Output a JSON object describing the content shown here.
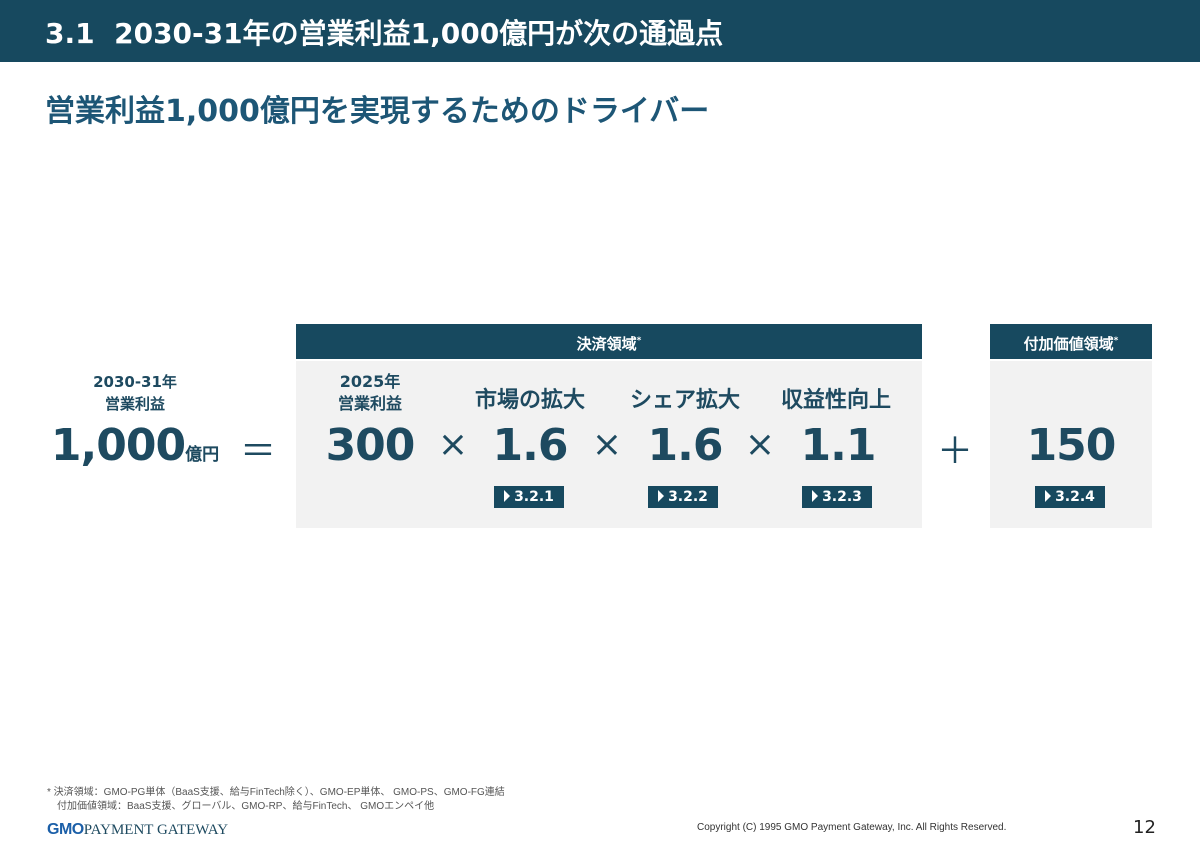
{
  "header": {
    "title": "3.1  2030-31年の営業利益1,000億円が次の通過点"
  },
  "subtitle": "営業利益1,000億円を実現するためのドライバー",
  "target": {
    "year": "2030-31年",
    "label": "営業利益",
    "value": "1,000",
    "unit": "億円"
  },
  "equals": "＝",
  "payment": {
    "header": "決済領域",
    "mark": "*",
    "base": {
      "year": "2025年",
      "label": "営業利益",
      "value": "300"
    },
    "times": "×",
    "drivers": [
      {
        "label": "市場の拡大",
        "value": "1.6",
        "ref": "3.2.1"
      },
      {
        "label": "シェア拡大",
        "value": "1.6",
        "ref": "3.2.2"
      },
      {
        "label": "収益性向上",
        "value": "1.1",
        "ref": "3.2.3"
      }
    ]
  },
  "plus": "＋",
  "value_added": {
    "header": "付加価値領域",
    "mark": "*",
    "value": "150",
    "ref": "3.2.4"
  },
  "footnotes": [
    "* 決済領域：GMO-PG単体（BaaS支援、給与FinTech除く）、GMO-EP単体、 GMO-PS、GMO-FG連結",
    "付加価値領域：BaaS支援、グローバル、GMO-RP、給与FinTech、 GMOエンペイ他"
  ],
  "logo": {
    "gmo": "GMO",
    "text": "PAYMENT GATEWAY"
  },
  "copyright": "Copyright (C) 1995 GMO Payment Gateway, Inc. All Rights Reserved.",
  "page_number": "12",
  "colors": {
    "primary": "#17495f",
    "panel": "#f2f2f2"
  }
}
